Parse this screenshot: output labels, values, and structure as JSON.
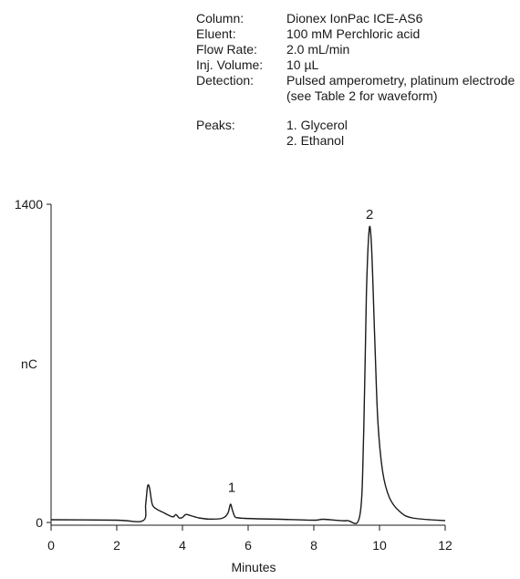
{
  "conditions": [
    {
      "label": "Column:",
      "value": "Dionex IonPac ICE-AS6"
    },
    {
      "label": "Eluent:",
      "value": "100 mM Perchloric acid"
    },
    {
      "label": "Flow Rate:",
      "value": "2.0 mL/min"
    },
    {
      "label": "Inj. Volume:",
      "value": "10 µL"
    },
    {
      "label": "Detection:",
      "value": "Pulsed amperometry, platinum electrode"
    },
    {
      "label": "",
      "value": "(see Table 2 for waveform)"
    }
  ],
  "peaks": {
    "label": "Peaks:",
    "items": [
      "1. Glycerol",
      "2. Ethanol"
    ]
  },
  "chart_data": {
    "type": "line",
    "xlabel": "Minutes",
    "ylabel": "nC",
    "xlim": [
      0,
      12
    ],
    "ylim": [
      0,
      1400
    ],
    "xticks": [
      0,
      2,
      4,
      6,
      8,
      10,
      12
    ],
    "yticks": [
      0,
      1400
    ],
    "grid": false,
    "series": [
      {
        "x": [
          0,
          2.0,
          2.8,
          2.88,
          2.94,
          3.0,
          3.08,
          3.2,
          3.4,
          3.7,
          3.8,
          3.9,
          4.0,
          4.1,
          4.25,
          4.5,
          4.8,
          5.2,
          5.38,
          5.46,
          5.52,
          5.6,
          5.72,
          5.9,
          6.3,
          7.0,
          8.0,
          8.3,
          9.0,
          9.4,
          9.52,
          9.6,
          9.68,
          9.74,
          9.8,
          9.88,
          9.96,
          10.1,
          10.3,
          10.6,
          11.0,
          12.0
        ],
        "y": [
          12,
          10,
          8,
          80,
          160,
          150,
          80,
          60,
          45,
          25,
          35,
          20,
          22,
          35,
          30,
          20,
          15,
          18,
          40,
          80,
          55,
          25,
          20,
          18,
          16,
          14,
          10,
          14,
          8,
          30,
          400,
          1000,
          1280,
          1260,
          1050,
          700,
          420,
          220,
          110,
          50,
          20,
          8
        ]
      }
    ],
    "annotations": [
      {
        "text": "1",
        "x": 5.5,
        "y": 135
      },
      {
        "text": "2",
        "x": 9.7,
        "y": 1335
      }
    ]
  }
}
